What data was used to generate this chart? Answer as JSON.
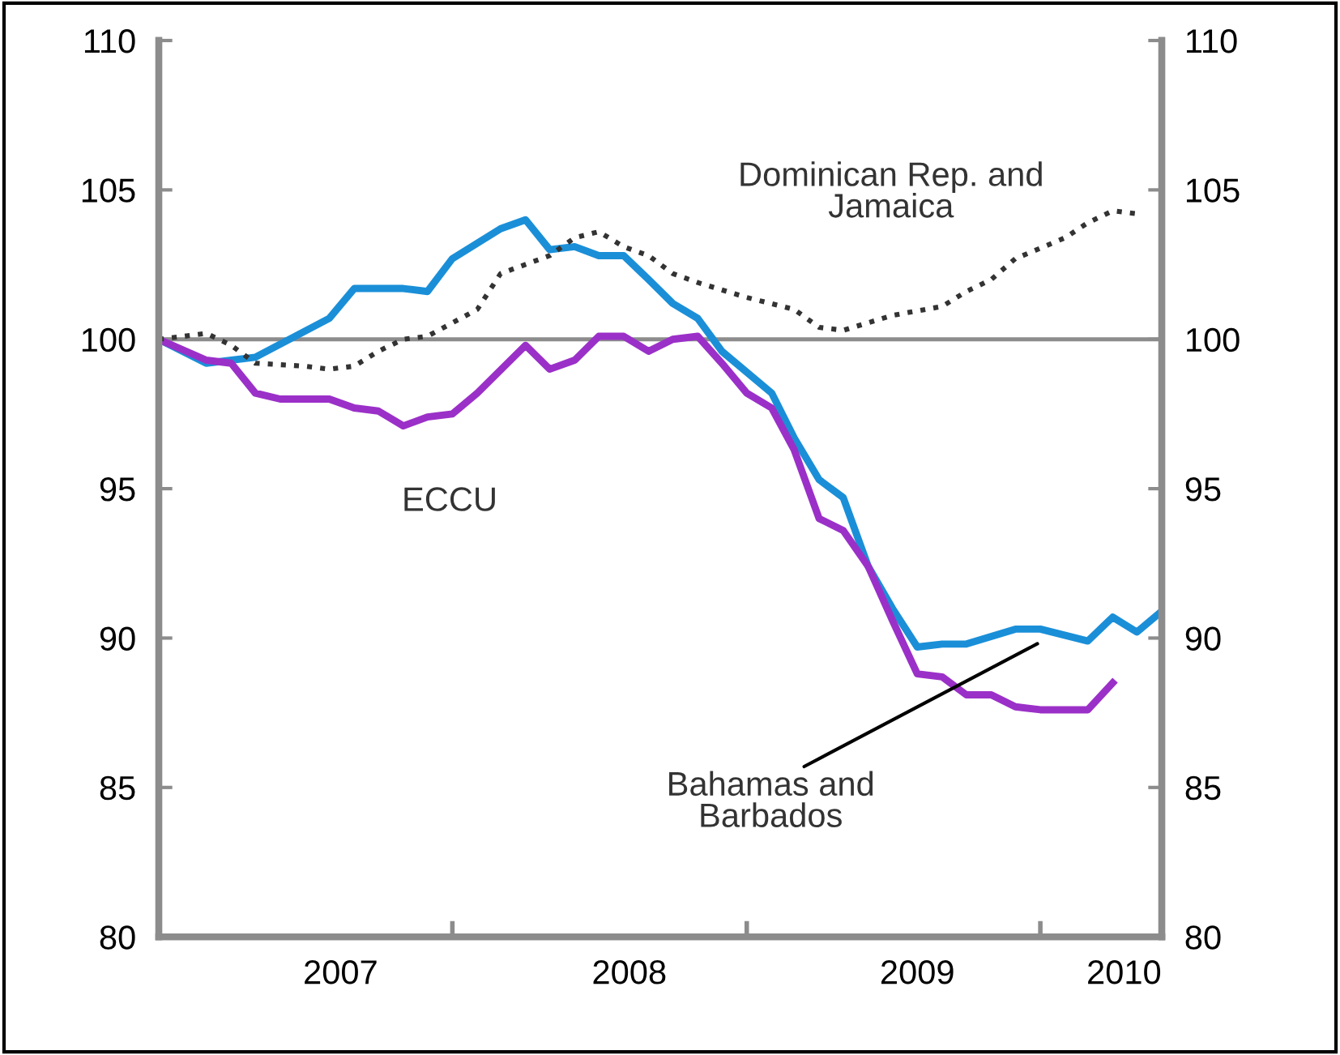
{
  "chart_data": {
    "type": "line",
    "xlim": [
      "2007-01-01",
      "2010-06-01"
    ],
    "ylim": [
      80,
      110
    ],
    "y2lim": [
      80,
      110
    ],
    "xticks": [
      {
        "value": "2007-01-01",
        "label": null
      },
      {
        "value": "2008-01-01",
        "label": null
      },
      {
        "value": "2009-01-01",
        "label": null
      },
      {
        "value": "2010-01-01",
        "label": null
      },
      {
        "value": "2007-08-15",
        "label": "2007"
      },
      {
        "value": "2008-08-08",
        "label": "2008"
      },
      {
        "value": "2009-08-01",
        "label": "2009"
      },
      {
        "value": "2010-04-15",
        "label": "2010"
      }
    ],
    "yticks": [
      80,
      85,
      90,
      95,
      100,
      105,
      110
    ],
    "y2ticks": [
      80,
      85,
      90,
      95,
      100,
      105,
      110
    ],
    "grid": false,
    "legend": false,
    "marker": "none",
    "ref_lines": [
      {
        "axis": "y",
        "value": 100,
        "label": null,
        "color": "#8c8c8c"
      }
    ],
    "series": [
      {
        "color": "#1a8fd8",
        "line_style": "solid",
        "x": [
          "2007-01",
          "2007-03",
          "2007-05",
          "2007-08",
          "2007-09",
          "2007-11",
          "2007-12",
          "2008-01",
          "2008-03",
          "2008-04",
          "2008-05",
          "2008-06",
          "2008-07",
          "2008-08",
          "2008-09",
          "2008-10",
          "2008-11",
          "2008-12",
          "2009-02",
          "2009-03",
          "2009-04",
          "2009-05",
          "2009-06",
          "2009-07",
          "2009-08",
          "2009-09",
          "2009-10",
          "2009-12",
          "2010-01",
          "2010-03",
          "2010-04",
          "2010-05",
          "2010-06"
        ],
        "values": [
          100.0,
          99.2,
          99.4,
          100.7,
          101.7,
          101.7,
          101.6,
          102.7,
          103.7,
          104.0,
          103.0,
          103.1,
          102.8,
          102.8,
          102.0,
          101.2,
          100.7,
          99.6,
          98.2,
          96.7,
          95.3,
          94.7,
          92.4,
          91.0,
          89.7,
          89.8,
          89.8,
          90.3,
          90.3,
          89.9,
          90.7,
          90.2,
          90.9
        ]
      },
      {
        "color": "#9b30c8",
        "line_style": "solid",
        "x": [
          "2007-01",
          "2007-03",
          "2007-04",
          "2007-05",
          "2007-06",
          "2007-08",
          "2007-09",
          "2007-10",
          "2007-11",
          "2007-12",
          "2008-01",
          "2008-02",
          "2008-04",
          "2008-05",
          "2008-06",
          "2008-07",
          "2008-08",
          "2008-09",
          "2008-10",
          "2008-11",
          "2008-12",
          "2009-01",
          "2009-02",
          "2009-03",
          "2009-04",
          "2009-05",
          "2009-06",
          "2009-07",
          "2009-08",
          "2009-09",
          "2009-10",
          "2009-11",
          "2009-12",
          "2010-01",
          "2010-03",
          "2010-04"
        ],
        "values": [
          100.0,
          99.3,
          99.2,
          98.2,
          98.0,
          98.0,
          97.7,
          97.6,
          97.1,
          97.4,
          97.5,
          98.2,
          99.8,
          99.0,
          99.3,
          100.1,
          100.1,
          99.6,
          100.0,
          100.1,
          99.2,
          98.2,
          97.7,
          96.3,
          94.0,
          93.6,
          92.4,
          90.6,
          88.8,
          88.7,
          88.1,
          88.1,
          87.7,
          87.6,
          87.6,
          88.5
        ]
      },
      {
        "color": "#333333",
        "line_style": "dotted",
        "x": [
          "2007-01",
          "2007-02",
          "2007-03",
          "2007-04",
          "2007-05",
          "2007-07",
          "2007-08",
          "2007-09",
          "2007-10",
          "2007-11",
          "2007-12",
          "2008-02",
          "2008-03",
          "2008-05",
          "2008-06",
          "2008-07",
          "2008-08",
          "2008-09",
          "2008-10",
          "2008-11",
          "2009-01",
          "2009-03",
          "2009-04",
          "2009-05",
          "2009-07",
          "2009-09",
          "2009-10",
          "2009-11",
          "2009-12",
          "2010-02",
          "2010-03",
          "2010-04",
          "2010-05"
        ],
        "values": [
          100.0,
          100.1,
          100.2,
          99.8,
          99.2,
          99.1,
          99.0,
          99.1,
          99.6,
          100.0,
          100.1,
          101.0,
          102.2,
          102.8,
          103.4,
          103.6,
          103.1,
          102.8,
          102.2,
          101.9,
          101.4,
          101.0,
          100.4,
          100.3,
          100.8,
          101.1,
          101.6,
          102.0,
          102.7,
          103.4,
          103.9,
          104.3,
          104.2
        ]
      }
    ],
    "annotations": [
      "Dominican Rep. and\nJamaica",
      "ECCU",
      "Bahamas and\nBarbados"
    ]
  }
}
